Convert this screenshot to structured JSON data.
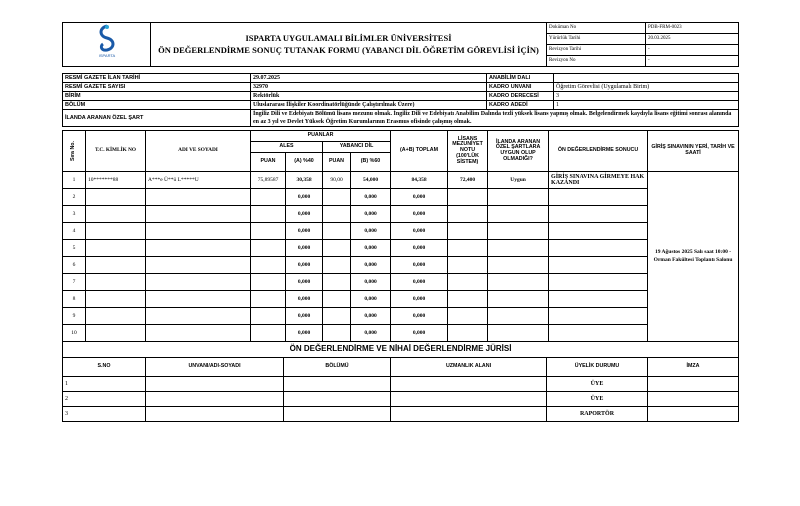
{
  "header": {
    "title_line1": "ISPARTA UYGULAMALI BİLİMLER ÜNİVERSİTESİ",
    "title_line2": "ÖN DEĞERLENDİRME SONUÇ TUTANAK FORMU (YABANCI DİL ÖĞRETİM GÖREVLİSİ İÇİN)",
    "logo_text": "ISPARTA UYGULAMALI BİLİMLER ÜNİVERSİTESİ",
    "meta": [
      {
        "label": "Doküman No",
        "value": "PDB-FRM-0023"
      },
      {
        "label": "Yürürlük Tarihi",
        "value": "20.03.2025"
      },
      {
        "label": "Revizyon Tarihi",
        "value": "-"
      },
      {
        "label": "Revizyon No",
        "value": "-"
      }
    ]
  },
  "info": {
    "ilan_tarihi_label": "RESMİ GAZETE İLAN TARİHİ",
    "ilan_tarihi": "29.07.2025",
    "sayi_label": "RESMİ GAZETE SAYISI",
    "sayi": "32970",
    "birim_label": "BİRİM",
    "birim": "Rektörlük",
    "bolum_label": "BÖLÜM",
    "bolum": "Uluslararası İlişkiler Koordinatörlüğünde Çalıştırılmak Üzere)",
    "sart_label": "İLANDA ARANAN ÖZEL ŞART",
    "sart": "İngiliz Dili ve Edebiyatı Bölümü lisans mezunu olmak. İngiliz Dili ve Edebiyatı Anabilim Dalında tezli yüksek lisans yapmış olmak. Belgelendirmek kaydıyla lisans eğitimi sonrası alanında en az 3 yıl ve Devlet Yüksek Öğretim Kurumlarının Erasmus ofisinde çalışmış olmak.",
    "anabilim_label": "ANABİLİM DALI",
    "anabilim": "",
    "unvan_label": "KADRO UNVANI",
    "unvan": "Öğretim Görevlisi (Uygulamalı Birim)",
    "derece_label": "KADRO DERECESİ",
    "derece": "3",
    "adet_label": "KADRO ADEDİ",
    "adet": "1"
  },
  "table": {
    "h_sira": "Sıra No.",
    "h_tc": "T.C. KİMLİK NO",
    "h_ad": "ADI VE SOYADI",
    "h_puanlar": "PUANLAR",
    "h_ales": "ALES",
    "h_yd": "YABANCI DİL",
    "h_puan": "PUAN",
    "h_a": "(A) %40",
    "h_b": "(B) %60",
    "h_toplam": "(A+B) TOPLAM",
    "h_lisans": "LİSANS MEZUNİYET NOTU (100'LÜK SİSTEM)",
    "h_ilanda": "İLANDA ARANAN ÖZEL ŞARTLARA UYGUN OLUP OLMADIĞI?",
    "h_sonuc": "ÖN DEĞERLENDİRME SONUCU",
    "h_giris": "GİRİŞ SINAVININ YERİ, TARİH VE SAATİ",
    "giris": "19 Ağustos 2025 Salı saat 10:00 - Orman Fakültesi Toplantı Salonu",
    "rows": [
      {
        "no": "1",
        "tc": "10*******88",
        "ad": "A***e Ü**ü L*****U",
        "ales": "75,89587",
        "a": "30,358",
        "yd": "90,00",
        "b": "54,000",
        "toplam": "84,358",
        "lisans": "72,400",
        "uygun": "Uygun",
        "sonuc": "GİRİŞ SINAVINA GİRMEYE HAK KAZANDI"
      },
      {
        "no": "2",
        "a": "0,000",
        "b": "0,000",
        "toplam": "0,000"
      },
      {
        "no": "3",
        "a": "0,000",
        "b": "0,000",
        "toplam": "0,000"
      },
      {
        "no": "4",
        "a": "0,000",
        "b": "0,000",
        "toplam": "0,000"
      },
      {
        "no": "5",
        "a": "0,000",
        "b": "0,000",
        "toplam": "0,000"
      },
      {
        "no": "6",
        "a": "0,000",
        "b": "0,000",
        "toplam": "0,000"
      },
      {
        "no": "7",
        "a": "0,000",
        "b": "0,000",
        "toplam": "0,000"
      },
      {
        "no": "8",
        "a": "0,000",
        "b": "0,000",
        "toplam": "0,000"
      },
      {
        "no": "9",
        "a": "0,000",
        "b": "0,000",
        "toplam": "0,000"
      },
      {
        "no": "10",
        "a": "0,000",
        "b": "0,000",
        "toplam": "0,000"
      }
    ]
  },
  "jury": {
    "title": "ÖN DEĞERLENDİRME VE NİHAİ DEĞERLENDİRME JÜRİSİ",
    "h_sno": "S.NO",
    "h_unvan": "UNVANI/ADI-SOYADI",
    "h_bolum": "BÖLÜMÜ",
    "h_uzmanlik": "UZMANLIK ALANI",
    "h_uyelik": "ÜYELİK DURUMU",
    "h_imza": "İMZA",
    "rows": [
      {
        "no": "1",
        "uyelik": "ÜYE"
      },
      {
        "no": "2",
        "uyelik": "ÜYE"
      },
      {
        "no": "3",
        "uyelik": "RAPORTÖR"
      }
    ]
  }
}
